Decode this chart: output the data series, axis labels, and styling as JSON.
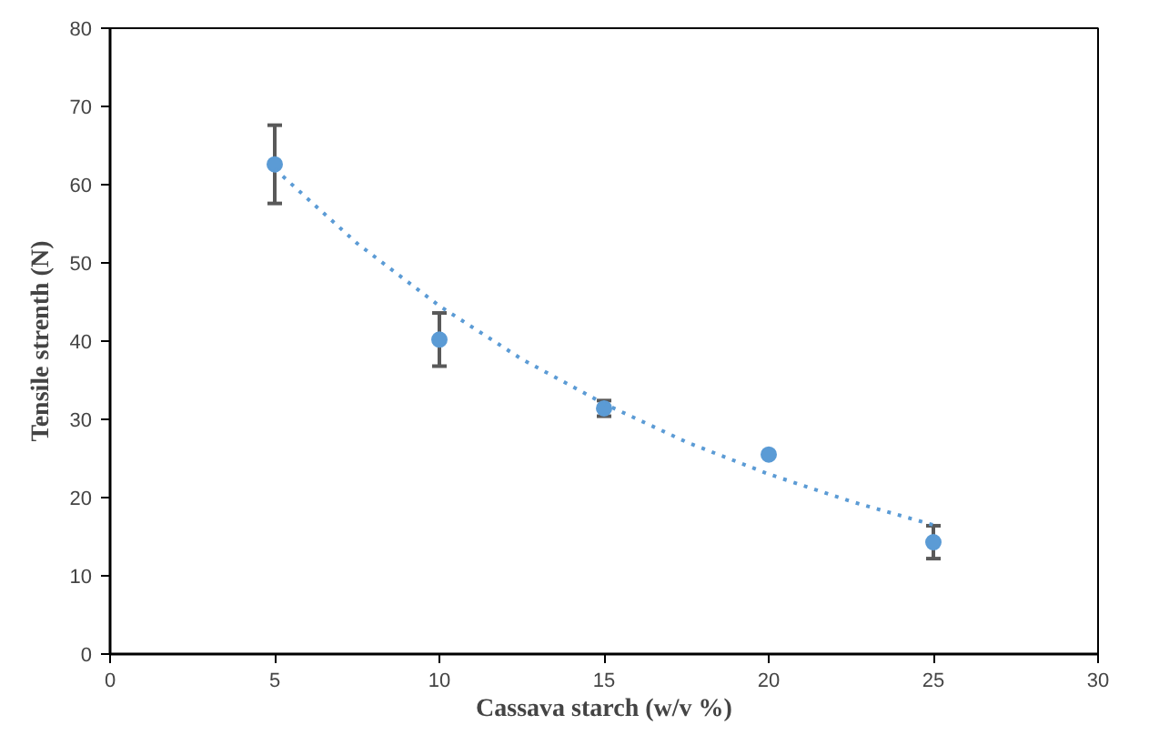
{
  "chart_data": {
    "type": "scatter",
    "xlabel": "Cassava starch (w/v %)",
    "ylabel": "Tensile strenth (N)",
    "xlim": [
      0,
      30
    ],
    "xticks": [
      0,
      5,
      10,
      15,
      20,
      25,
      30
    ],
    "ylim": [
      0,
      80
    ],
    "yticks": [
      0,
      10,
      20,
      30,
      40,
      50,
      60,
      70,
      80
    ],
    "grid": false,
    "marker": "circle",
    "series": [
      {
        "color": "#5b9bd5",
        "x": [
          5,
          10,
          15,
          20,
          25
        ],
        "values": [
          62.6,
          40.2,
          31.4,
          25.5,
          14.3
        ],
        "errors": [
          5,
          3.4,
          1,
          null,
          2.1
        ]
      },
      {
        "type": "line",
        "color": "#5b9bd5",
        "line_style": "dotted",
        "marker": "none",
        "x": [
          5,
          7.5,
          10,
          12.5,
          15,
          17.5,
          20,
          22.5,
          25
        ],
        "values": [
          62,
          52.5,
          44.5,
          37.7,
          32,
          27.1,
          23,
          19.5,
          16.5
        ]
      }
    ]
  }
}
